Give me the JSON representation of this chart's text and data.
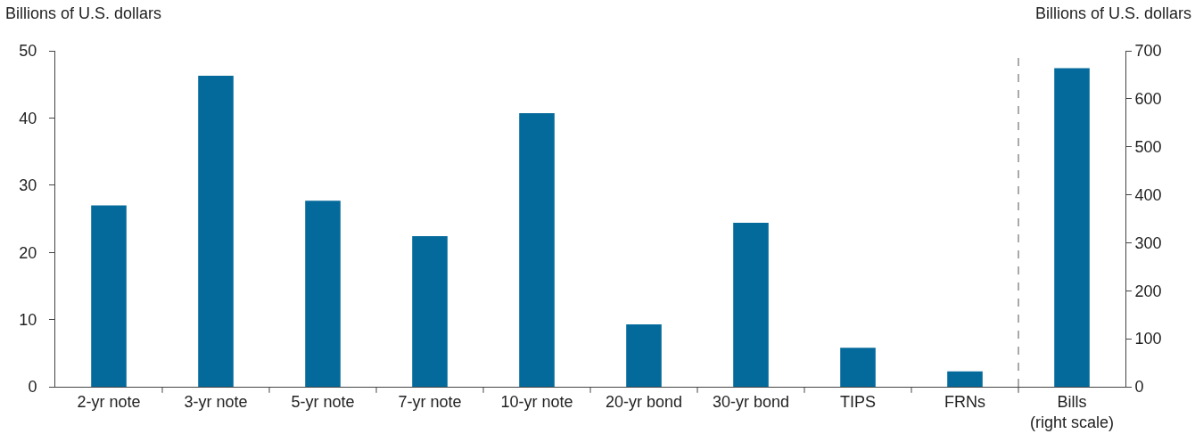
{
  "chart_data": {
    "type": "bar",
    "ylabel": "Billions of U.S. dollars",
    "y2label": "Billions of U.S. dollars",
    "categories": [
      "2-yr note",
      "3-yr note",
      "5-yr note",
      "7-yr note",
      "10-yr note",
      "20-yr bond",
      "30-yr bond",
      "TIPS",
      "FRNs",
      "Bills\n(right scale)"
    ],
    "series": [
      {
        "color": "#046a9b",
        "values": [
          27,
          46.3,
          27.7,
          22.4,
          40.7,
          9.3,
          24.4,
          5.8,
          2.3,
          null
        ]
      },
      {
        "color": "#046a9b",
        "axis": "y2",
        "values": [
          null,
          null,
          null,
          null,
          null,
          null,
          null,
          null,
          null,
          664
        ]
      }
    ],
    "ylim": [
      0,
      50
    ],
    "yticks": [
      0,
      10,
      20,
      30,
      40,
      50
    ],
    "y2lim": [
      0,
      700
    ],
    "y2ticks": [
      0,
      100,
      200,
      300,
      400,
      500,
      600,
      700
    ],
    "grid": false
  }
}
